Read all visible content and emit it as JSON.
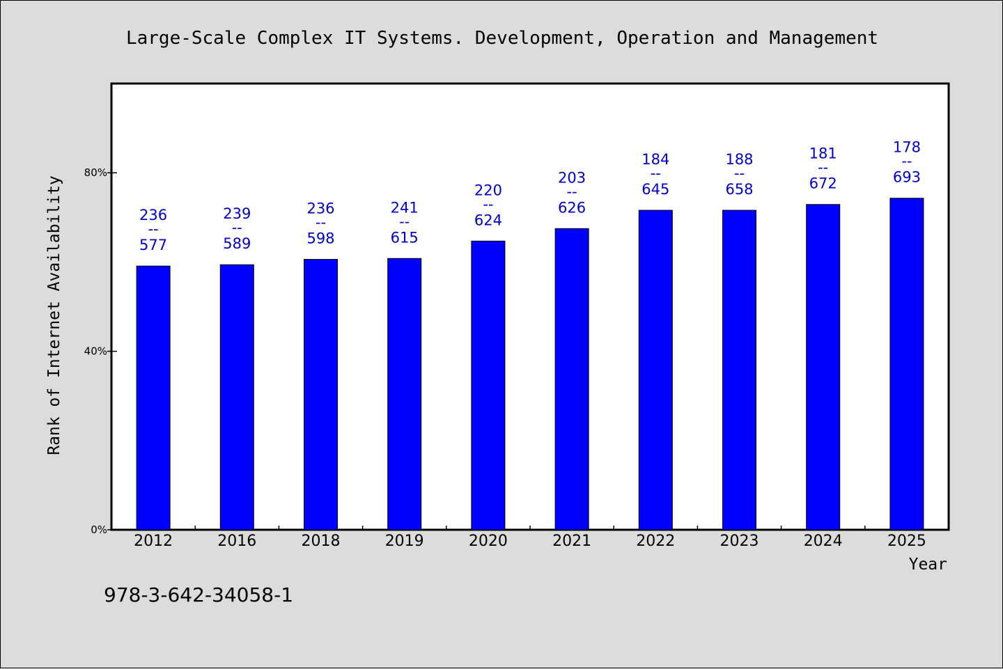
{
  "footnote": "978-3-642-34058-1",
  "chart_data": {
    "type": "bar",
    "title": "Large-Scale Complex IT Systems. Development, Operation and Management",
    "xlabel": "Year",
    "ylabel": "Rank of Internet Availability",
    "categories": [
      "2012",
      "2016",
      "2018",
      "2019",
      "2020",
      "2021",
      "2022",
      "2023",
      "2024",
      "2025"
    ],
    "values": [
      59.1,
      59.4,
      60.6,
      60.8,
      64.7,
      67.5,
      71.6,
      71.6,
      72.9,
      74.3
    ],
    "data_labels": [
      {
        "top": "236",
        "sep": "--",
        "bottom": "577"
      },
      {
        "top": "239",
        "sep": "--",
        "bottom": "589"
      },
      {
        "top": "236",
        "sep": "--",
        "bottom": "598"
      },
      {
        "top": "241",
        "sep": "--",
        "bottom": "615"
      },
      {
        "top": "220",
        "sep": "--",
        "bottom": "624"
      },
      {
        "top": "203",
        "sep": "--",
        "bottom": "626"
      },
      {
        "top": "184",
        "sep": "--",
        "bottom": "645"
      },
      {
        "top": "188",
        "sep": "--",
        "bottom": "658"
      },
      {
        "top": "181",
        "sep": "--",
        "bottom": "672"
      },
      {
        "top": "178",
        "sep": "--",
        "bottom": "693"
      }
    ],
    "yticks": [
      "0%",
      "40%",
      "80%"
    ],
    "ytick_values": [
      0,
      40,
      80
    ],
    "ylim": [
      0,
      100
    ],
    "grid": false,
    "legend": "none",
    "colors": {
      "bar": "#0000ff",
      "label": "#0000cc",
      "background": "#dcdcdc",
      "plot": "#ffffff"
    }
  }
}
